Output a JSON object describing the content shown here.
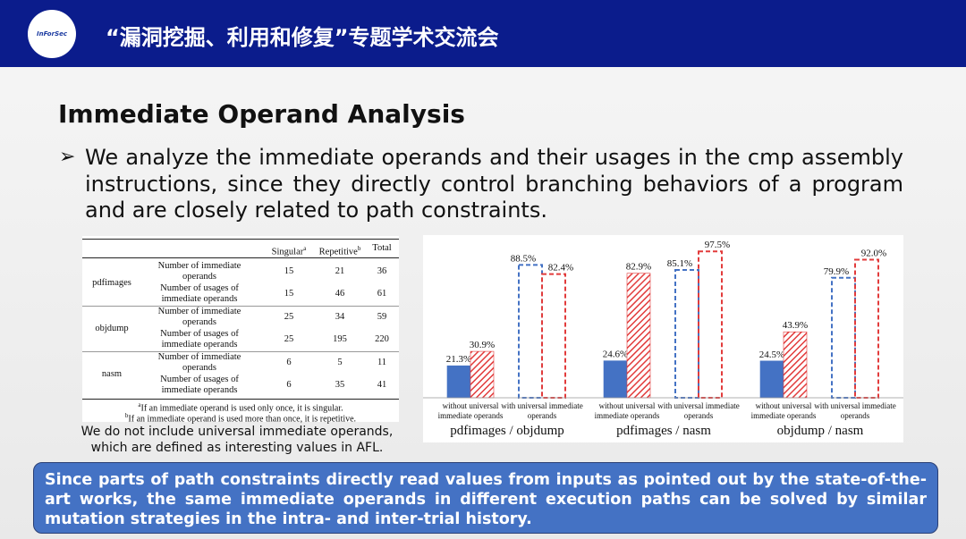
{
  "header": {
    "title": "“漏洞挖掘、利用和修复”专题学术交流会",
    "logo_text": "InForSec"
  },
  "slide_title": "Immediate Operand Analysis",
  "bullet": "We analyze the immediate operands and their usages in the cmp assembly instructions, since they directly control branching behaviors of a program and are closely related to path constraints.",
  "table": {
    "columns": [
      {
        "text": "Singular",
        "sup": "a"
      },
      {
        "text": "Repetitive",
        "sup": "b"
      },
      {
        "text": "Total"
      }
    ],
    "groups": [
      {
        "program": "pdfimages",
        "rows": [
          {
            "desc": "Number of immediate operands",
            "values": [
              15,
              21,
              36
            ]
          },
          {
            "desc": "Number of usages of immediate operands",
            "values": [
              15,
              46,
              61
            ]
          }
        ]
      },
      {
        "program": "objdump",
        "rows": [
          {
            "desc": "Number of immediate operands",
            "values": [
              25,
              34,
              59
            ]
          },
          {
            "desc": "Number of usages of immediate operands",
            "values": [
              25,
              195,
              220
            ]
          }
        ]
      },
      {
        "program": "nasm",
        "rows": [
          {
            "desc": "Number of immediate operands",
            "values": [
              6,
              5,
              11
            ]
          },
          {
            "desc": "Number of usages of immediate operands",
            "values": [
              6,
              35,
              41
            ]
          }
        ]
      }
    ],
    "footnotes": [
      {
        "sup": "a",
        "text": "If an immediate operand is used only once, it is singular."
      },
      {
        "sup": "b",
        "text": "If an immediate operand is used more than once, it is repetitive."
      }
    ]
  },
  "table_caption": "We do not include universal immediate operands, which are defined as interesting values in AFL.",
  "chart": {
    "type": "bar",
    "ylim": [
      0,
      100
    ],
    "colors": [
      "#4472c4",
      "#e23b3b"
    ],
    "groups": [
      {
        "label": "pdfimages / objdump",
        "pairs": [
          {
            "label": "without universal immediate operands",
            "style": "filled",
            "values": [
              21.3,
              30.9
            ],
            "value_labels": [
              "21.3%",
              "30.9%"
            ]
          },
          {
            "label": "with universal immediate operands",
            "style": "outline",
            "values": [
              88.5,
              82.4
            ],
            "value_labels": [
              "88.5%",
              "82.4%"
            ]
          }
        ]
      },
      {
        "label": "pdfimages / nasm",
        "pairs": [
          {
            "label": "without universal immediate operands",
            "style": "filled",
            "values": [
              24.6,
              82.9
            ],
            "value_labels": [
              "24.6%",
              "82.9%"
            ]
          },
          {
            "label": "with universal immediate operands",
            "style": "outline",
            "values": [
              85.1,
              97.5
            ],
            "value_labels": [
              "85.1%",
              "97.5%"
            ]
          }
        ]
      },
      {
        "label": "objdump / nasm",
        "pairs": [
          {
            "label": "without universal immediate operands",
            "style": "filled",
            "values": [
              24.5,
              43.9
            ],
            "value_labels": [
              "24.5%",
              "43.9%"
            ]
          },
          {
            "label": "with universal immediate operands",
            "style": "outline",
            "values": [
              79.9,
              92.0
            ],
            "value_labels": [
              "79.9%",
              "92.0%"
            ]
          }
        ]
      }
    ]
  },
  "callout": "Since parts of path constraints directly read values from inputs as pointed out by the state-of-the-art works, the same immediate operands in different execution paths can be solved by similar mutation strategies in the intra- and inter-trial history."
}
